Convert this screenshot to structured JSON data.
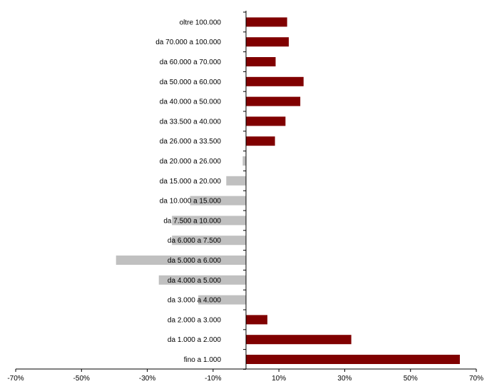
{
  "chart_data": {
    "type": "bar",
    "orientation": "horizontal",
    "categories": [
      "oltre 100.000",
      "da 70.000 a 100.000",
      "da 60.000 a 70.000",
      "da 50.000 a 60.000",
      "da 40.000 a 50.000",
      "da 33.500 a 40.000",
      "da 26.000 a 33.500",
      "da 20.000 a 26.000",
      "da 15.000 a 20.000",
      "da 10.000 a 15.000",
      "da 7.500 a 10.000",
      "da 6.000 a 7.500",
      "da 5.000 a 6.000",
      "da 4.000 a 5.000",
      "da 3.000 a 4.000",
      "da 2.000 a 3.000",
      "da 1.000 a 2.000",
      "fino a 1.000"
    ],
    "values": [
      12.5,
      13,
      9,
      17.5,
      16.5,
      12,
      8.8,
      -1,
      -6,
      -17,
      -22.5,
      -22.5,
      -39.5,
      -26.5,
      -14.5,
      6.5,
      32,
      65
    ],
    "xlim": [
      -70,
      70
    ],
    "xticks": [
      -70,
      -50,
      -30,
      -10,
      10,
      30,
      50,
      70
    ],
    "xtick_labels": [
      "-70%",
      "-50%",
      "-30%",
      "-10%",
      "10%",
      "30%",
      "50%",
      "70%"
    ],
    "colors": {
      "positive": "#800000",
      "negative": "#c0c0c0"
    },
    "grid": false,
    "legend": "none",
    "title": "",
    "xlabel": "",
    "ylabel": ""
  }
}
